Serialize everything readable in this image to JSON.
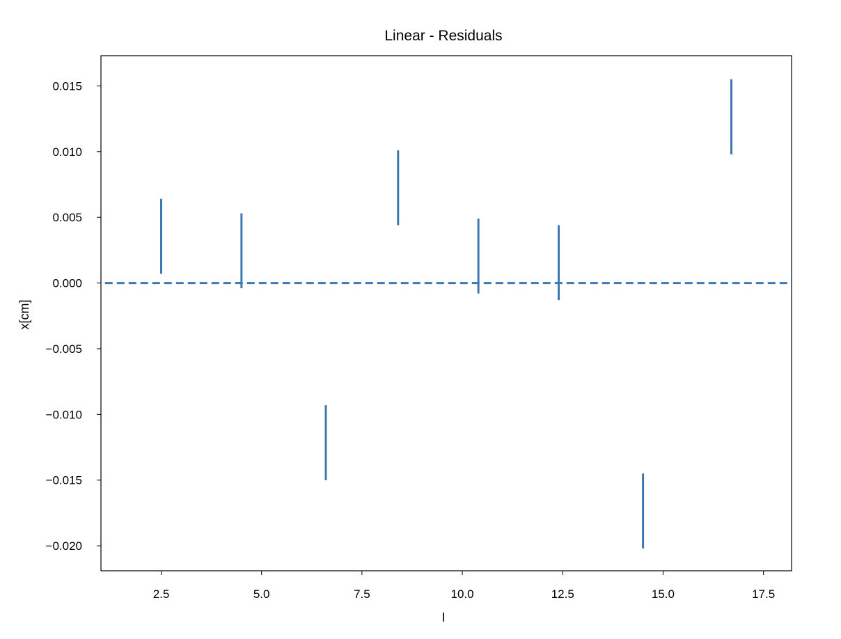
{
  "chart_data": {
    "type": "scatter",
    "title": "Linear - Residuals",
    "xlabel": "I",
    "ylabel": "x[cm]",
    "xlim": [
      1.0,
      18.2
    ],
    "ylim": [
      -0.0219,
      0.0173
    ],
    "x_ticks": [
      2.5,
      5.0,
      7.5,
      10.0,
      12.5,
      15.0,
      17.5
    ],
    "x_tick_labels": [
      "2.5",
      "5.0",
      "7.5",
      "10.0",
      "12.5",
      "15.0",
      "17.5"
    ],
    "y_ticks": [
      0.015,
      0.01,
      0.005,
      0.0,
      -0.005,
      -0.01,
      -0.015,
      -0.02
    ],
    "y_tick_labels": [
      "0.015",
      "0.010",
      "0.005",
      "0.000",
      "−0.005",
      "−0.010",
      "−0.015",
      "−0.020"
    ],
    "grid": false,
    "series": [
      {
        "name": "residuals",
        "kind": "errorbar",
        "color": "#3f77b4",
        "points": [
          {
            "x": 2.5,
            "low": 0.0007,
            "high": 0.0064
          },
          {
            "x": 4.5,
            "low": -0.0004,
            "high": 0.0053
          },
          {
            "x": 6.6,
            "low": -0.015,
            "high": -0.0093
          },
          {
            "x": 8.4,
            "low": 0.0044,
            "high": 0.0101
          },
          {
            "x": 10.4,
            "low": -0.0008,
            "high": 0.0049
          },
          {
            "x": 12.4,
            "low": -0.0013,
            "high": 0.0044
          },
          {
            "x": 14.5,
            "low": -0.0202,
            "high": -0.0145
          },
          {
            "x": 16.7,
            "low": 0.0098,
            "high": 0.0155
          }
        ]
      },
      {
        "name": "zero line",
        "kind": "dashed-line",
        "color": "#3f77b4",
        "x": [
          1.1,
          18.1
        ],
        "y": [
          0.0,
          0.0
        ]
      }
    ]
  }
}
